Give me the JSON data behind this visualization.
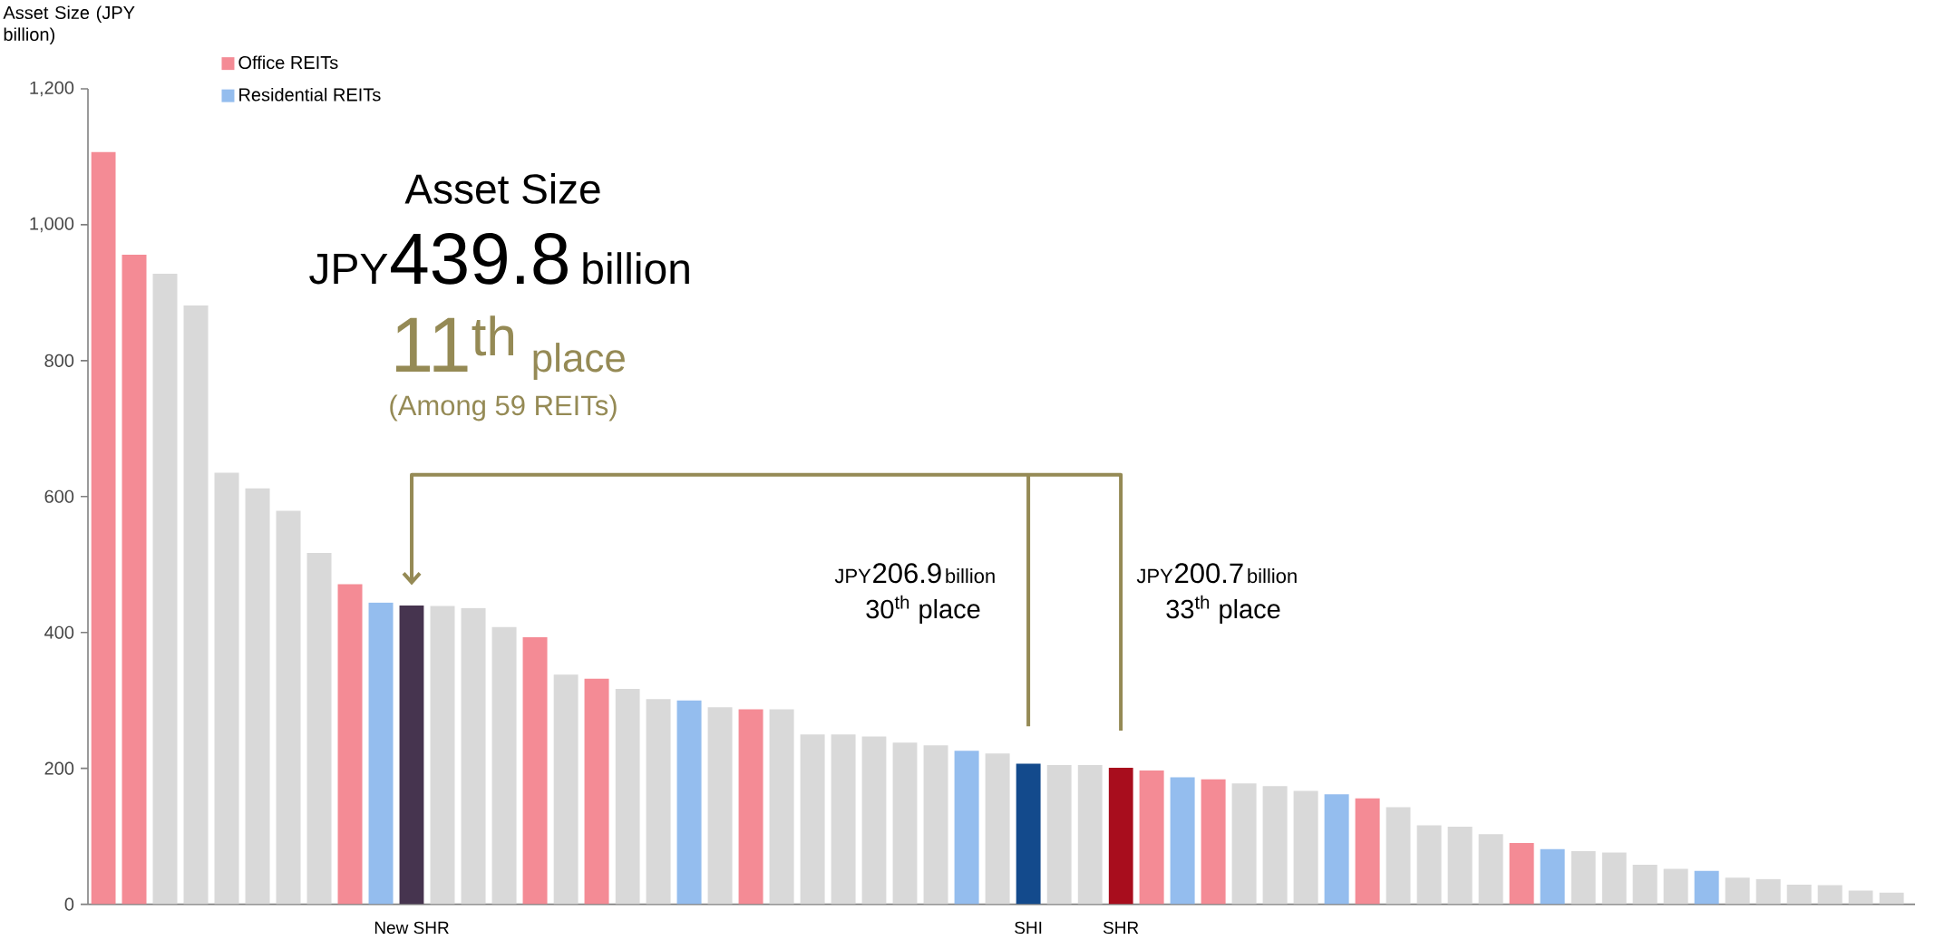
{
  "chart_data": {
    "type": "bar",
    "ylabel": "Asset Size (JPY billion)",
    "categories": [
      null,
      null,
      null,
      null,
      null,
      null,
      null,
      null,
      null,
      null,
      "New SHR",
      null,
      null,
      null,
      null,
      null,
      null,
      null,
      null,
      null,
      null,
      null,
      null,
      null,
      null,
      null,
      null,
      null,
      null,
      null,
      "SHI",
      null,
      null,
      "SHR",
      null,
      null,
      null,
      null,
      null,
      null,
      null,
      null,
      null,
      null,
      null,
      null,
      null,
      null,
      null,
      null,
      null,
      null,
      null,
      null,
      null,
      null,
      null,
      null,
      null
    ],
    "series": [
      {
        "name": "Office REITs",
        "color": "#f48b95",
        "values": [
          1107,
          956,
          null,
          null,
          null,
          null,
          null,
          null,
          471,
          null,
          null,
          null,
          null,
          null,
          393,
          null,
          332,
          null,
          null,
          null,
          null,
          287,
          null,
          null,
          null,
          null,
          null,
          null,
          null,
          null,
          null,
          null,
          null,
          null,
          197,
          null,
          184,
          null,
          null,
          null,
          null,
          156,
          null,
          null,
          null,
          null,
          90,
          null,
          null,
          null,
          null,
          null,
          null,
          null,
          null,
          null,
          null,
          null,
          null
        ]
      },
      {
        "name": "Residential REITs",
        "color": "#94bdee",
        "values": [
          null,
          null,
          null,
          null,
          null,
          null,
          null,
          null,
          null,
          444,
          null,
          null,
          null,
          null,
          null,
          null,
          null,
          null,
          null,
          300,
          null,
          null,
          null,
          null,
          null,
          null,
          null,
          null,
          226,
          null,
          null,
          null,
          null,
          null,
          null,
          187,
          null,
          null,
          null,
          null,
          162,
          null,
          null,
          null,
          null,
          null,
          null,
          81,
          null,
          null,
          null,
          null,
          49,
          null,
          null,
          null,
          null,
          null,
          null
        ]
      },
      {
        "values": [
          null,
          null,
          928,
          881,
          635,
          612,
          579,
          517,
          null,
          null,
          439.8,
          439,
          436,
          408,
          null,
          338,
          null,
          317,
          302,
          null,
          290,
          null,
          287,
          250,
          250,
          247,
          238,
          234,
          null,
          222,
          206.9,
          205,
          205,
          200.7,
          null,
          null,
          null,
          178,
          174,
          167,
          null,
          null,
          143,
          116,
          114,
          103,
          null,
          null,
          78,
          76,
          58,
          52,
          null,
          39,
          37,
          29,
          28,
          20,
          17
        ],
        "colors": [
          null,
          null,
          "#d9d9d9",
          "#d9d9d9",
          "#d9d9d9",
          "#d9d9d9",
          "#d9d9d9",
          "#d9d9d9",
          null,
          null,
          "#46344f",
          "#d9d9d9",
          "#d9d9d9",
          "#d9d9d9",
          null,
          "#d9d9d9",
          null,
          "#d9d9d9",
          "#d9d9d9",
          null,
          "#d9d9d9",
          null,
          "#d9d9d9",
          "#d9d9d9",
          "#d9d9d9",
          "#d9d9d9",
          "#d9d9d9",
          "#d9d9d9",
          null,
          "#d9d9d9",
          "#134a8c",
          "#d9d9d9",
          "#d9d9d9",
          "#a80d1d",
          null,
          null,
          null,
          "#d9d9d9",
          "#d9d9d9",
          "#d9d9d9",
          null,
          null,
          "#d9d9d9",
          "#d9d9d9",
          "#d9d9d9",
          "#d9d9d9",
          null,
          null,
          "#d9d9d9",
          "#d9d9d9",
          "#d9d9d9",
          "#d9d9d9",
          null,
          "#d9d9d9",
          "#d9d9d9",
          "#d9d9d9",
          "#d9d9d9",
          "#d9d9d9",
          "#d9d9d9"
        ]
      }
    ],
    "ylim": [
      0,
      1200
    ],
    "yticks": [
      0,
      200,
      400,
      600,
      800,
      {
        "value": 1000,
        "label": "1,000"
      },
      {
        "value": 1200,
        "label": "1,200"
      }
    ],
    "legend": "top left",
    "annotations": [
      "Asset Size",
      "JPY",
      "439.8",
      "billion",
      "11$^{th}$",
      "place",
      "(Among 59 REITs)",
      "JPY",
      "206.9",
      "billion",
      "30$^{th}$ place",
      "JPY",
      "200.7",
      "billion",
      "33$^{th}$ place"
    ]
  }
}
